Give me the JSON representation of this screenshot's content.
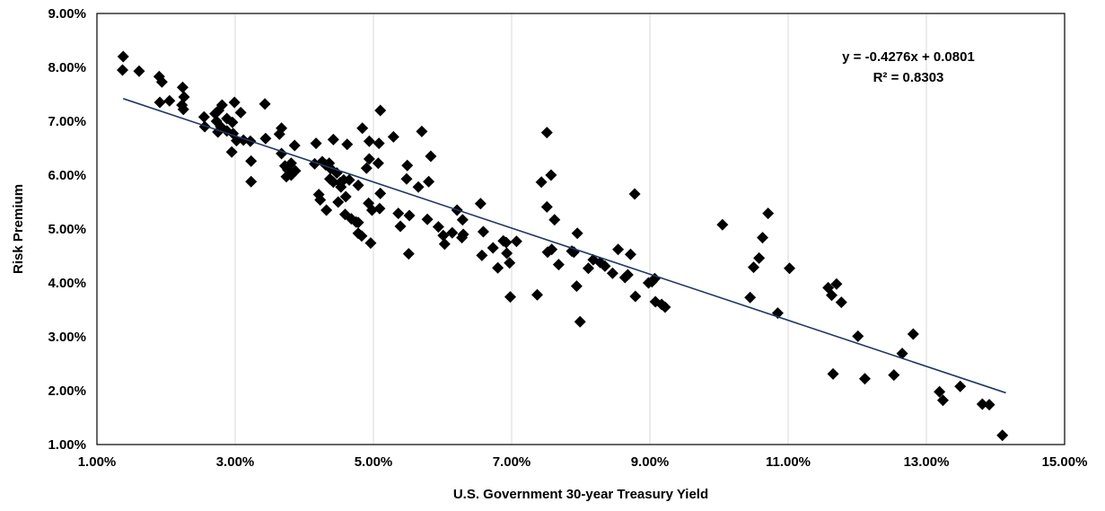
{
  "chart_data": {
    "type": "scatter",
    "title": "",
    "xlabel": "U.S. Government 30-year Treasury Yield",
    "ylabel": "Risk Premium",
    "xlim": [
      0.01,
      0.15
    ],
    "ylim": [
      0.01,
      0.09
    ],
    "x_ticks": [
      0.01,
      0.03,
      0.05,
      0.07,
      0.09,
      0.11,
      0.13,
      0.15
    ],
    "x_tick_labels": [
      "1.00%",
      "3.00%",
      "5.00%",
      "7.00%",
      "9.00%",
      "11.00%",
      "13.00%",
      "15.00%"
    ],
    "y_ticks": [
      0.01,
      0.02,
      0.03,
      0.04,
      0.05,
      0.06,
      0.07,
      0.08,
      0.09
    ],
    "y_tick_labels": [
      "1.00%",
      "2.00%",
      "3.00%",
      "4.00%",
      "5.00%",
      "6.00%",
      "7.00%",
      "8.00%",
      "9.00%"
    ],
    "grid": "vertical",
    "legend": "none",
    "marker": "diamond",
    "marker_color": "#000000",
    "trendline": {
      "slope": -0.4276,
      "intercept": 0.0801,
      "x_range": [
        0.0138,
        0.0142
      ],
      "color": "#1f3864",
      "equation_label": "y = -0.4276x + 0.0801",
      "r2_label": "R² = 0.8303"
    },
    "points": [
      [
        0.0138,
        0.082
      ],
      [
        0.0137,
        0.0795
      ],
      [
        0.0161,
        0.0793
      ],
      [
        0.019,
        0.0783
      ],
      [
        0.0194,
        0.0773
      ],
      [
        0.0191,
        0.0735
      ],
      [
        0.0205,
        0.0738
      ],
      [
        0.0224,
        0.0763
      ],
      [
        0.0226,
        0.0745
      ],
      [
        0.0223,
        0.073
      ],
      [
        0.0225,
        0.0722
      ],
      [
        0.0255,
        0.0708
      ],
      [
        0.0256,
        0.069
      ],
      [
        0.0271,
        0.0714
      ],
      [
        0.0276,
        0.072
      ],
      [
        0.0281,
        0.073
      ],
      [
        0.0273,
        0.07
      ],
      [
        0.0279,
        0.069
      ],
      [
        0.0288,
        0.0705
      ],
      [
        0.0296,
        0.0698
      ],
      [
        0.0299,
        0.0735
      ],
      [
        0.0308,
        0.0716
      ],
      [
        0.0275,
        0.068
      ],
      [
        0.0288,
        0.0682
      ],
      [
        0.0297,
        0.0677
      ],
      [
        0.0302,
        0.0664
      ],
      [
        0.0295,
        0.0643
      ],
      [
        0.0312,
        0.0665
      ],
      [
        0.0322,
        0.0663
      ],
      [
        0.0343,
        0.0732
      ],
      [
        0.0344,
        0.0668
      ],
      [
        0.0323,
        0.0626
      ],
      [
        0.0323,
        0.0588
      ],
      [
        0.0367,
        0.0687
      ],
      [
        0.0364,
        0.0676
      ],
      [
        0.0386,
        0.0655
      ],
      [
        0.0367,
        0.064
      ],
      [
        0.0372,
        0.0617
      ],
      [
        0.0381,
        0.0622
      ],
      [
        0.0376,
        0.061
      ],
      [
        0.0387,
        0.0608
      ],
      [
        0.0374,
        0.0597
      ],
      [
        0.0381,
        0.06
      ],
      [
        0.0417,
        0.0659
      ],
      [
        0.0415,
        0.0621
      ],
      [
        0.0426,
        0.0625
      ],
      [
        0.0431,
        0.0619
      ],
      [
        0.0436,
        0.0622
      ],
      [
        0.0438,
        0.0612
      ],
      [
        0.0442,
        0.0666
      ],
      [
        0.0462,
        0.0657
      ],
      [
        0.0447,
        0.0604
      ],
      [
        0.0457,
        0.0591
      ],
      [
        0.0465,
        0.0591
      ],
      [
        0.0437,
        0.0593
      ],
      [
        0.0442,
        0.0587
      ],
      [
        0.0452,
        0.0586
      ],
      [
        0.0453,
        0.0578
      ],
      [
        0.0478,
        0.0581
      ],
      [
        0.0421,
        0.0564
      ],
      [
        0.0423,
        0.0554
      ],
      [
        0.0432,
        0.0535
      ],
      [
        0.0449,
        0.055
      ],
      [
        0.046,
        0.056
      ],
      [
        0.0459,
        0.0527
      ],
      [
        0.0468,
        0.0519
      ],
      [
        0.0475,
        0.0513
      ],
      [
        0.0478,
        0.0492
      ],
      [
        0.0483,
        0.0487
      ],
      [
        0.0478,
        0.0512
      ],
      [
        0.0484,
        0.0687
      ],
      [
        0.0494,
        0.0663
      ],
      [
        0.049,
        0.0613
      ],
      [
        0.0494,
        0.063
      ],
      [
        0.0508,
        0.0659
      ],
      [
        0.051,
        0.072
      ],
      [
        0.0507,
        0.0622
      ],
      [
        0.051,
        0.0566
      ],
      [
        0.0493,
        0.0548
      ],
      [
        0.0498,
        0.0535
      ],
      [
        0.0509,
        0.0538
      ],
      [
        0.0496,
        0.0474
      ],
      [
        0.0529,
        0.0671
      ],
      [
        0.0549,
        0.0618
      ],
      [
        0.0548,
        0.0593
      ],
      [
        0.057,
        0.0681
      ],
      [
        0.0583,
        0.0635
      ],
      [
        0.0565,
        0.0578
      ],
      [
        0.058,
        0.0588
      ],
      [
        0.0536,
        0.0529
      ],
      [
        0.0539,
        0.0505
      ],
      [
        0.0552,
        0.0525
      ],
      [
        0.0551,
        0.0454
      ],
      [
        0.0578,
        0.0518
      ],
      [
        0.0594,
        0.0504
      ],
      [
        0.0601,
        0.0488
      ],
      [
        0.0603,
        0.0472
      ],
      [
        0.0614,
        0.0493
      ],
      [
        0.0621,
        0.0535
      ],
      [
        0.0629,
        0.0517
      ],
      [
        0.063,
        0.049
      ],
      [
        0.0628,
        0.0484
      ],
      [
        0.0655,
        0.0547
      ],
      [
        0.0659,
        0.0495
      ],
      [
        0.0657,
        0.0451
      ],
      [
        0.0673,
        0.0465
      ],
      [
        0.068,
        0.0428
      ],
      [
        0.0688,
        0.0478
      ],
      [
        0.0692,
        0.0475
      ],
      [
        0.0693,
        0.0455
      ],
      [
        0.0697,
        0.0437
      ],
      [
        0.0698,
        0.0374
      ],
      [
        0.0707,
        0.0477
      ],
      [
        0.0737,
        0.0378
      ],
      [
        0.0743,
        0.0587
      ],
      [
        0.0751,
        0.0679
      ],
      [
        0.0757,
        0.06
      ],
      [
        0.0751,
        0.0541
      ],
      [
        0.0762,
        0.0517
      ],
      [
        0.0752,
        0.0457
      ],
      [
        0.0758,
        0.0462
      ],
      [
        0.0768,
        0.0434
      ],
      [
        0.0787,
        0.0459
      ],
      [
        0.079,
        0.0457
      ],
      [
        0.0795,
        0.0492
      ],
      [
        0.0794,
        0.0394
      ],
      [
        0.0799,
        0.0328
      ],
      [
        0.0811,
        0.0427
      ],
      [
        0.0818,
        0.0443
      ],
      [
        0.0828,
        0.0438
      ],
      [
        0.0835,
        0.0431
      ],
      [
        0.0846,
        0.0418
      ],
      [
        0.0854,
        0.0462
      ],
      [
        0.0864,
        0.041
      ],
      [
        0.0868,
        0.0415
      ],
      [
        0.0872,
        0.0453
      ],
      [
        0.0878,
        0.0565
      ],
      [
        0.0879,
        0.0375
      ],
      [
        0.0898,
        0.04
      ],
      [
        0.0903,
        0.0402
      ],
      [
        0.0907,
        0.0408
      ],
      [
        0.0908,
        0.0365
      ],
      [
        0.0917,
        0.036
      ],
      [
        0.0922,
        0.0355
      ],
      [
        0.1005,
        0.0508
      ],
      [
        0.1045,
        0.0373
      ],
      [
        0.105,
        0.0429
      ],
      [
        0.1058,
        0.0446
      ],
      [
        0.1063,
        0.0484
      ],
      [
        0.1071,
        0.0529
      ],
      [
        0.1085,
        0.0344
      ],
      [
        0.1102,
        0.0427
      ],
      [
        0.1158,
        0.0391
      ],
      [
        0.1163,
        0.0377
      ],
      [
        0.117,
        0.0398
      ],
      [
        0.1177,
        0.0364
      ],
      [
        0.1165,
        0.0231
      ],
      [
        0.1201,
        0.0301
      ],
      [
        0.1211,
        0.0222
      ],
      [
        0.1253,
        0.0229
      ],
      [
        0.1265,
        0.0269
      ],
      [
        0.1281,
        0.0305
      ],
      [
        0.1319,
        0.0198
      ],
      [
        0.1324,
        0.0182
      ],
      [
        0.1349,
        0.0208
      ],
      [
        0.1381,
        0.0175
      ],
      [
        0.1391,
        0.0174
      ],
      [
        0.141,
        0.0117
      ]
    ]
  }
}
